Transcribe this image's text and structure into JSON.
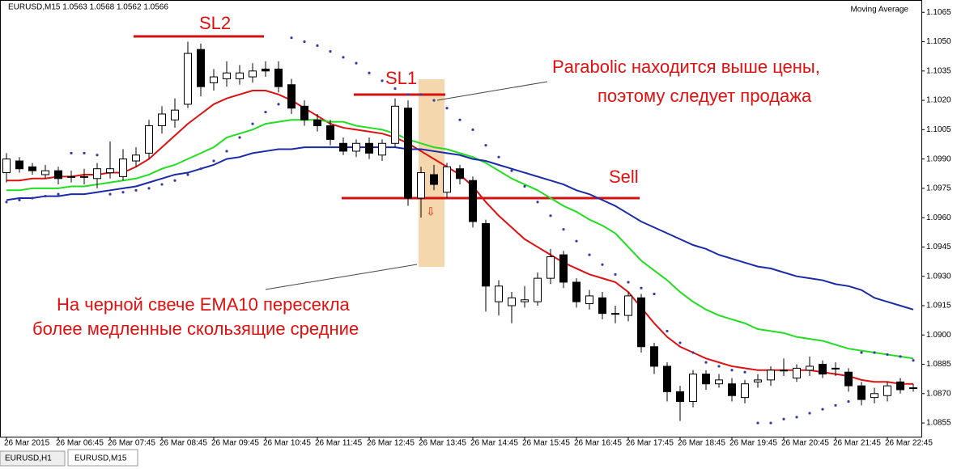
{
  "header": {
    "symbol": "EURUSD,M15  1.0563 1.0568 1.0562 1.0566",
    "indicator": "Moving Average"
  },
  "tabs": [
    "EURUSD,H1",
    "EURUSD,M15"
  ],
  "chart_data": {
    "type": "candlestick",
    "categories": [
      "26 Mar 2015",
      null,
      null,
      null,
      "26 Mar 06:45",
      null,
      null,
      null,
      "26 Mar 07:45",
      null,
      null,
      null,
      "26 Mar 08:45",
      null,
      null,
      null,
      "26 Mar 09:45",
      null,
      null,
      null,
      "26 Mar 10:45",
      null,
      null,
      null,
      "26 Mar 11:45",
      null,
      null,
      null,
      "26 Mar 12:45",
      null,
      null,
      null,
      "26 Mar 13:45",
      null,
      null,
      null,
      "26 Mar 14:45",
      null,
      null,
      null,
      "26 Mar 15:45",
      null,
      null,
      null,
      "26 Mar 16:45",
      null,
      null,
      null,
      "26 Mar 17:45",
      null,
      null,
      null,
      "26 Mar 18:45",
      null,
      null,
      null,
      "26 Mar 19:45",
      null,
      null,
      null,
      "26 Mar 20:45",
      null,
      null,
      null,
      "26 Mar 21:45",
      null,
      null,
      null,
      "26 Mar 22:45",
      null,
      null
    ],
    "open": [
      1.0983,
      1.0989,
      1.0986,
      1.0982,
      1.0984,
      1.0981,
      1.0981,
      1.098,
      1.0983,
      1.0981,
      1.0989,
      1.0993,
      1.1007,
      1.101,
      1.1018,
      1.1046,
      1.1029,
      1.1031,
      1.1031,
      1.1032,
      1.1036,
      1.1036,
      1.1028,
      1.1017,
      1.101,
      1.1007,
      1.0998,
      1.0994,
      1.0998,
      1.0992,
      1.0998,
      1.1016,
      1.097,
      1.0982,
      1.0973,
      1.0985,
      1.0979,
      1.0957,
      1.0917,
      1.0915,
      1.0917,
      1.0917,
      1.0929,
      1.0941,
      1.0927,
      1.0916,
      1.0919,
      1.0911,
      1.091,
      1.0919,
      1.0894,
      1.0884,
      1.0871,
      1.0866,
      1.088,
      1.0875,
      1.0875,
      1.0868,
      1.0876,
      1.0877,
      1.0882,
      1.0878,
      1.0882,
      1.0885,
      1.0883,
      1.0881,
      1.0874,
      1.0868,
      1.0869,
      1.0876,
      1.0873
    ],
    "high": [
      1.0993,
      1.0991,
      1.0988,
      1.0987,
      1.0986,
      1.0984,
      1.0985,
      1.0988,
      1.0999,
      1.0995,
      1.0996,
      1.101,
      1.1017,
      1.1021,
      1.105,
      1.1049,
      1.1036,
      1.104,
      1.1038,
      1.1039,
      1.104,
      1.104,
      1.1031,
      1.102,
      1.1013,
      1.101,
      1.1001,
      1.1,
      1.1001,
      1.1,
      1.1021,
      1.102,
      1.0986,
      1.0987,
      1.0988,
      1.0987,
      1.0981,
      1.0959,
      1.0928,
      1.0922,
      1.0925,
      1.0932,
      1.0944,
      1.0943,
      1.0929,
      1.0923,
      1.0922,
      1.0915,
      1.0922,
      1.0921,
      1.0896,
      1.0886,
      1.0874,
      1.0882,
      1.0882,
      1.088,
      1.0878,
      1.0877,
      1.088,
      1.0884,
      1.0888,
      1.0885,
      1.0889,
      1.0887,
      1.0886,
      1.0883,
      1.0876,
      1.0873,
      1.0876,
      1.0878,
      1.0875
    ],
    "low": [
      1.0978,
      1.0983,
      1.0982,
      1.098,
      1.0977,
      1.0978,
      1.0977,
      1.0975,
      1.098,
      1.0979,
      1.0986,
      1.099,
      1.1003,
      1.1006,
      1.1016,
      1.1022,
      1.1025,
      1.1027,
      1.1028,
      1.1029,
      1.1032,
      1.1024,
      1.1013,
      1.1007,
      1.1004,
      1.0997,
      1.0992,
      1.0991,
      1.099,
      1.0989,
      1.0996,
      1.0966,
      1.096,
      1.0974,
      1.097,
      1.0977,
      1.0955,
      1.0912,
      1.091,
      1.0906,
      1.0914,
      1.0915,
      1.0926,
      1.0924,
      1.0914,
      1.0913,
      1.0908,
      1.0906,
      1.0907,
      1.0891,
      1.088,
      1.0866,
      1.0856,
      1.0863,
      1.0872,
      1.0873,
      1.0866,
      1.0865,
      1.0873,
      1.0874,
      1.0879,
      1.0876,
      1.0879,
      1.0878,
      1.0879,
      1.0871,
      1.0864,
      1.0865,
      1.0866,
      1.087,
      1.0871
    ],
    "close": [
      1.099,
      1.0985,
      1.0984,
      1.0984,
      1.098,
      1.0981,
      1.0981,
      1.0985,
      1.0985,
      1.099,
      1.0992,
      1.1007,
      1.1013,
      1.1015,
      1.1044,
      1.1027,
      1.1032,
      1.1034,
      1.1034,
      1.1035,
      1.1035,
      1.1027,
      1.1016,
      1.101,
      1.1007,
      1.1,
      1.0994,
      1.0998,
      1.0993,
      1.0998,
      1.1017,
      1.097,
      1.0983,
      1.0977,
      1.0986,
      1.098,
      1.0958,
      1.0925,
      1.0925,
      1.0919,
      1.0918,
      1.0929,
      1.094,
      1.0927,
      1.0917,
      1.092,
      1.0911,
      1.0911,
      1.092,
      1.0894,
      1.0884,
      1.0871,
      1.0866,
      1.088,
      1.0875,
      1.0877,
      1.0869,
      1.0875,
      1.0877,
      1.0882,
      1.0882,
      1.0883,
      1.0884,
      1.088,
      1.0883,
      1.0874,
      1.0867,
      1.087,
      1.0874,
      1.0872,
      1.0873
    ],
    "up_color": "#ffffff",
    "down_color": "#000000",
    "series": [
      {
        "color": "#dd1111",
        "values": [
          1.0979,
          1.0979,
          1.098,
          1.098,
          1.0981,
          1.0981,
          1.0982,
          1.0982,
          1.0983,
          1.0983,
          1.0986,
          1.099,
          1.0996,
          1.1002,
          1.1008,
          1.1013,
          1.1018,
          1.1021,
          1.1023,
          1.1025,
          1.1025,
          1.1023,
          1.102,
          1.1016,
          1.1012,
          1.1008,
          1.1006,
          1.1005,
          1.1004,
          1.1003,
          1.1001,
          1.0998,
          1.0994,
          1.099,
          1.0986,
          1.0982,
          1.0976,
          1.0968,
          1.0961,
          1.0955,
          1.0949,
          1.0945,
          1.0941,
          1.0937,
          1.0934,
          1.0931,
          1.0929,
          1.0927,
          1.0922,
          1.0914,
          1.0906,
          1.0899,
          1.0894,
          1.0891,
          1.0888,
          1.0886,
          1.0884,
          1.0883,
          1.0882,
          1.0882,
          1.0882,
          1.0882,
          1.0882,
          1.0881,
          1.088,
          1.0879,
          1.0877,
          1.0876,
          1.0876,
          1.0875,
          1.0875
        ]
      },
      {
        "color": "#22dd22",
        "values": [
          1.0974,
          1.0974,
          1.0975,
          1.0975,
          1.0975,
          1.0976,
          1.0976,
          1.0977,
          1.0978,
          1.0979,
          1.098,
          1.0982,
          1.0985,
          1.0987,
          1.099,
          1.0993,
          1.0996,
          1.1001,
          1.1003,
          1.1005,
          1.1008,
          1.1009,
          1.101,
          1.101,
          1.101,
          1.1009,
          1.1009,
          1.1007,
          1.1006,
          1.1005,
          1.1003,
          1.1,
          1.0998,
          1.0996,
          1.0995,
          1.0993,
          1.0991,
          1.0988,
          1.0984,
          1.098,
          1.0977,
          1.0974,
          1.097,
          1.0966,
          1.0963,
          1.0959,
          1.0956,
          1.0952,
          1.0945,
          1.0938,
          1.0933,
          1.0928,
          1.0922,
          1.0917,
          1.0913,
          1.091,
          1.0908,
          1.0906,
          1.0903,
          1.0902,
          1.0901,
          1.0899,
          1.0898,
          1.0897,
          1.0895,
          1.0893,
          1.0892,
          1.0891,
          1.089,
          1.0889,
          1.0888
        ]
      },
      {
        "color": "#1a2aa8",
        "values": [
          1.0969,
          1.097,
          1.097,
          1.0971,
          1.0971,
          1.0972,
          1.0972,
          1.0973,
          1.0974,
          1.0975,
          1.0976,
          1.0978,
          1.098,
          1.0982,
          1.0983,
          1.0985,
          1.0987,
          1.099,
          1.0991,
          1.0993,
          1.0994,
          1.0995,
          1.0995,
          1.0996,
          1.0996,
          1.0996,
          1.0996,
          1.0996,
          1.0996,
          1.0996,
          1.0996,
          1.0995,
          1.0995,
          1.0994,
          1.0993,
          1.0992,
          1.099,
          1.0989,
          1.0987,
          1.0985,
          1.0983,
          1.0981,
          1.0979,
          1.0977,
          1.0974,
          1.0972,
          1.0969,
          1.0966,
          1.0962,
          1.0958,
          1.0955,
          1.0952,
          1.0949,
          1.0946,
          1.0944,
          1.0941,
          1.0939,
          1.0937,
          1.0935,
          1.0934,
          1.0932,
          1.093,
          1.0929,
          1.0928,
          1.0926,
          1.0925,
          1.0923,
          1.0919,
          1.0917,
          1.0915,
          1.0913
        ]
      }
    ],
    "sar": {
      "color": "#3a3aa0",
      "values": [
        1.0968,
        1.0969,
        1.097,
        1.0971,
        1.0972,
        1.0993,
        1.0993,
        1.0992,
        1.0972,
        1.0973,
        1.0974,
        1.0975,
        1.0977,
        1.0979,
        1.0982,
        1.0985,
        1.0989,
        1.0994,
        1.1001,
        1.1008,
        1.1014,
        1.1018,
        1.1052,
        1.105,
        1.1048,
        1.1045,
        1.1042,
        1.1039,
        1.1034,
        1.103,
        1.1026,
        1.1023,
        1.1023,
        1.102,
        1.1016,
        1.101,
        1.1005,
        1.0997,
        1.0991,
        1.0984,
        1.0976,
        1.0968,
        1.0961,
        1.0954,
        1.0948,
        1.0941,
        1.0936,
        1.0931,
        1.0927,
        1.0924,
        1.0921,
        1.0902,
        1.0896,
        1.0891,
        1.0886,
        1.0884,
        1.0882,
        1.0881,
        1.0855,
        1.0855,
        1.0857,
        1.0858,
        1.086,
        1.0862,
        1.0864,
        1.0866,
        1.0891,
        1.0891,
        1.089,
        1.0889,
        1.0887
      ]
    },
    "ylim": [
      1.0848,
      1.1068
    ],
    "yticks": [
      1.1065,
      {
        "value": 1.105,
        "label": "1.1050"
      },
      1.1035,
      {
        "value": 1.102,
        "label": "1.1020"
      },
      1.1005,
      {
        "value": 1.099,
        "label": "1.0990"
      },
      1.0975,
      {
        "value": 1.096,
        "label": "1.0960"
      },
      1.0945,
      {
        "value": 1.093,
        "label": "1.0930"
      },
      1.0915,
      {
        "value": 1.09,
        "label": "1.0900"
      },
      1.0885,
      {
        "value": 1.087,
        "label": "1.0870"
      },
      1.0855
    ],
    "annotations": [
      "SL2",
      "SL1",
      "Sell",
      "Parabolic находится выше цены,",
      "поэтому следует продажа",
      "На черной свече EMA10 пересекла",
      "более медленные скользящие средние"
    ]
  }
}
